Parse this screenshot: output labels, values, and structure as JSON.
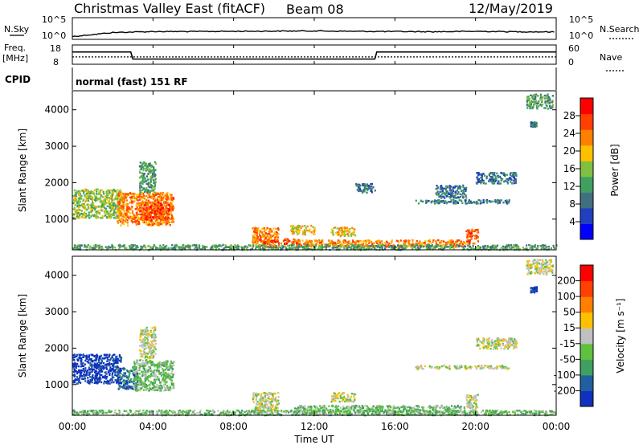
{
  "header": {
    "title": "Christmas Valley East (fitACF)",
    "beam": "Beam 08",
    "date": "12/May/2019"
  },
  "strip_labels": {
    "nsky": "N.Sky",
    "nsearch": "N.Search",
    "freq_line1": "Freq.",
    "freq_line2": "[MHz]",
    "nave": "Nave",
    "cpid": "CPID",
    "nsky_ticks": [
      "10^5",
      "10^0"
    ],
    "nsearch_ticks": [
      "10^5",
      "10^0"
    ],
    "freq_ticks": [
      "18",
      "8"
    ],
    "nave_ticks": [
      "60",
      "0"
    ]
  },
  "cpid_text": "normal (fast) 151 RF",
  "panels": {
    "power": {
      "ylabel": "Slant Range [km]",
      "yticks": [
        "4000",
        "3000",
        "2000",
        "1000"
      ],
      "colorbar_label": "Power [dB]",
      "colorbar_ticks": [
        "28",
        "24",
        "20",
        "16",
        "12",
        "8",
        "4"
      ],
      "colors": [
        "#0000ff",
        "#2040c0",
        "#407080",
        "#40a060",
        "#80c040",
        "#ffc000",
        "#ff8000",
        "#ff4000",
        "#ff0000"
      ]
    },
    "velocity": {
      "ylabel": "Slant Range [km]",
      "yticks": [
        "4000",
        "3000",
        "2000",
        "1000"
      ],
      "colorbar_label": "Velocity [m s⁻¹]",
      "colorbar_ticks": [
        "200",
        "100",
        "50",
        "15",
        "-15",
        "-50",
        "-100",
        "-200"
      ],
      "colors": [
        "#1030c0",
        "#2060a0",
        "#40a060",
        "#60c040",
        "#c0c0c0",
        "#ffc000",
        "#ff8000",
        "#ff4000",
        "#ff0000"
      ]
    }
  },
  "xaxis": {
    "label": "Time UT",
    "ticks": [
      "00:00",
      "04:00",
      "08:00",
      "12:00",
      "16:00",
      "20:00",
      "00:00"
    ]
  },
  "chart_data": [
    {
      "type": "line",
      "title": "N.Sky / N.Search",
      "x_hours": [
        0,
        2,
        4,
        6,
        8,
        10,
        12,
        14,
        16,
        18,
        20,
        22,
        24
      ],
      "series": [
        {
          "name": "N.Sky",
          "values": [
            10,
            30,
            35,
            35,
            36,
            37,
            38,
            36,
            35,
            34,
            36,
            34,
            33
          ]
        }
      ]
    },
    {
      "type": "line",
      "title": "Freq / Nave",
      "x_hours": [
        0,
        2.9,
        3.0,
        15.0,
        15.1,
        24
      ],
      "series": [
        {
          "name": "Freq. [MHz]",
          "values": [
            14.5,
            14.5,
            10.5,
            10.5,
            14.5,
            14.5
          ]
        },
        {
          "name": "Nave",
          "values": [
            22,
            22,
            22,
            22,
            22,
            22
          ]
        }
      ]
    },
    {
      "type": "heatmap",
      "title": "Power [dB]",
      "xlim_hours": [
        0,
        24
      ],
      "ylim_km": [
        180,
        4500
      ],
      "blobs": [
        {
          "t0": 0.0,
          "t1": 2.4,
          "r0": 1050,
          "r1": 1850,
          "level": 4
        },
        {
          "t0": 2.2,
          "t1": 5.0,
          "r0": 850,
          "r1": 1750,
          "level": 6
        },
        {
          "t0": 3.3,
          "t1": 4.8,
          "r0": 1000,
          "r1": 1500,
          "level": 7
        },
        {
          "t0": 3.3,
          "t1": 4.1,
          "r0": 1750,
          "r1": 2600,
          "level": 3
        },
        {
          "t0": 8.9,
          "t1": 10.2,
          "r0": 250,
          "r1": 800,
          "level": 6
        },
        {
          "t0": 9.4,
          "t1": 11.2,
          "r0": 330,
          "r1": 480,
          "level": 7
        },
        {
          "t0": 10.8,
          "t1": 12.0,
          "r0": 600,
          "r1": 850,
          "level": 5
        },
        {
          "t0": 12.8,
          "t1": 14.0,
          "r0": 550,
          "r1": 800,
          "level": 5
        },
        {
          "t0": 11.0,
          "t1": 19.5,
          "r0": 260,
          "r1": 450,
          "level": 6
        },
        {
          "t0": 19.5,
          "t1": 20.1,
          "r0": 350,
          "r1": 750,
          "level": 7
        },
        {
          "t0": 14.0,
          "t1": 15.0,
          "r0": 1750,
          "r1": 2000,
          "level": 2
        },
        {
          "t0": 17.0,
          "t1": 21.7,
          "r0": 1450,
          "r1": 1550,
          "level": 2
        },
        {
          "t0": 18.0,
          "t1": 19.5,
          "r0": 1600,
          "r1": 1950,
          "level": 2
        },
        {
          "t0": 20.0,
          "t1": 22.0,
          "r0": 2000,
          "r1": 2300,
          "level": 2
        },
        {
          "t0": 22.5,
          "t1": 23.8,
          "r0": 4050,
          "r1": 4450,
          "level": 3
        },
        {
          "t0": 22.7,
          "t1": 23.0,
          "r0": 3550,
          "r1": 3700,
          "level": 2
        },
        {
          "t0": 0.0,
          "t1": 24.0,
          "r0": 180,
          "r1": 320,
          "level": 3
        }
      ]
    },
    {
      "type": "heatmap",
      "title": "Velocity [m s-1]",
      "xlim_hours": [
        0,
        24
      ],
      "ylim_km": [
        180,
        4500
      ],
      "blobs": [
        {
          "t0": 0.0,
          "t1": 2.4,
          "r0": 1050,
          "r1": 1850,
          "level": 0
        },
        {
          "t0": 2.2,
          "t1": 3.2,
          "r0": 900,
          "r1": 1500,
          "level": 1
        },
        {
          "t0": 3.0,
          "t1": 5.0,
          "r0": 850,
          "r1": 1700,
          "level": 3
        },
        {
          "t0": 3.3,
          "t1": 4.1,
          "r0": 1750,
          "r1": 2600,
          "level": 4
        },
        {
          "t0": 8.9,
          "t1": 10.2,
          "r0": 250,
          "r1": 800,
          "level": 4
        },
        {
          "t0": 12.8,
          "t1": 14.0,
          "r0": 550,
          "r1": 800,
          "level": 4
        },
        {
          "t0": 11.0,
          "t1": 19.5,
          "r0": 260,
          "r1": 450,
          "level": 3
        },
        {
          "t0": 19.5,
          "t1": 20.1,
          "r0": 350,
          "r1": 750,
          "level": 4
        },
        {
          "t0": 17.0,
          "t1": 21.7,
          "r0": 1450,
          "r1": 1550,
          "level": 4
        },
        {
          "t0": 20.0,
          "t1": 22.0,
          "r0": 2000,
          "r1": 2300,
          "level": 4
        },
        {
          "t0": 22.5,
          "t1": 23.8,
          "r0": 4050,
          "r1": 4450,
          "level": 4
        },
        {
          "t0": 22.7,
          "t1": 23.0,
          "r0": 3550,
          "r1": 3700,
          "level": 0
        },
        {
          "t0": 0.0,
          "t1": 24.0,
          "r0": 180,
          "r1": 320,
          "level": 3
        }
      ]
    }
  ]
}
